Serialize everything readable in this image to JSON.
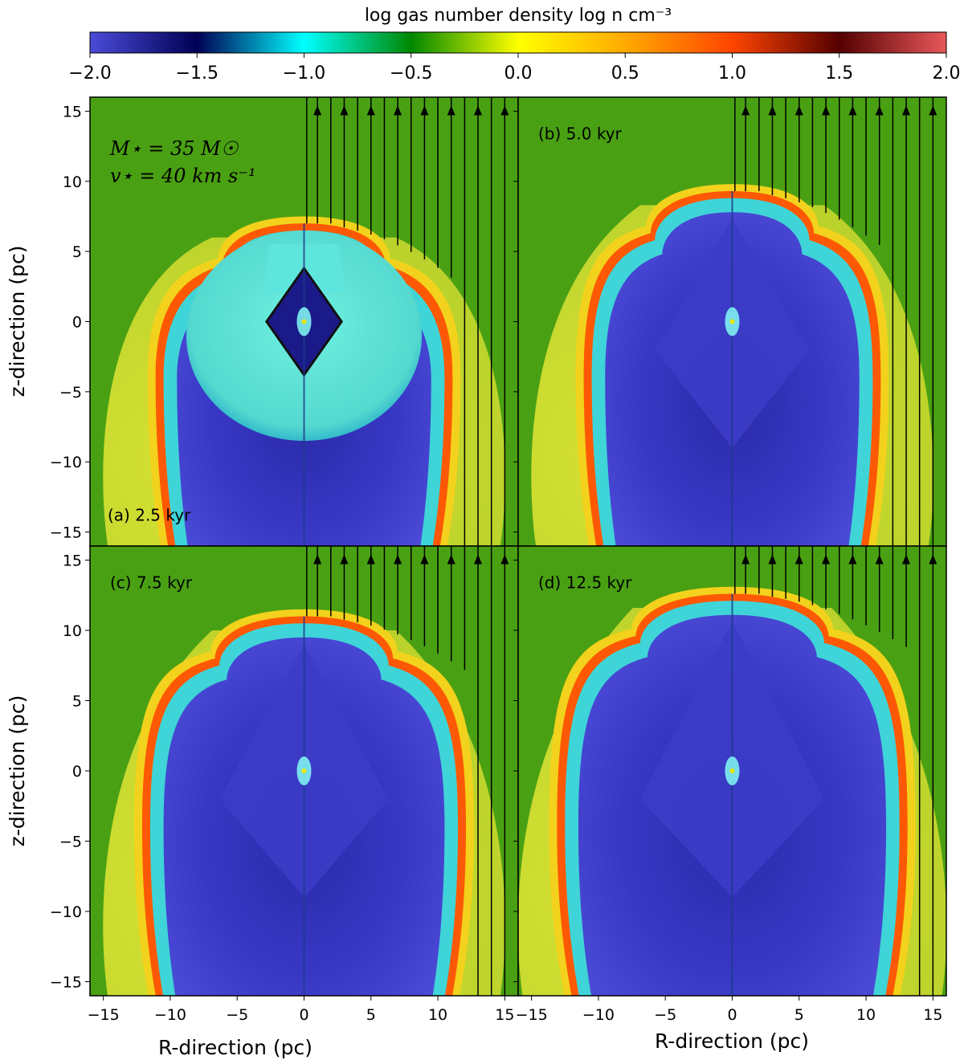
{
  "colorbar": {
    "label": "log gas number density log n cm⁻³",
    "ticks": [
      "−2.0",
      "−1.5",
      "−1.0",
      "−0.5",
      "0.0",
      "0.5",
      "1.0",
      "1.5",
      "2.0"
    ],
    "range": [
      -2.0,
      2.0
    ]
  },
  "chart_data": {
    "type": "heatmap",
    "xlabel": "R-direction (pc)",
    "ylabel": "z-direction (pc)",
    "xlim": [
      -16,
      16
    ],
    "ylim": [
      -16,
      16
    ],
    "xticks": [
      -15,
      -10,
      -5,
      0,
      5,
      10,
      15
    ],
    "yticks": [
      -15,
      -10,
      -5,
      0,
      5,
      10,
      15
    ],
    "colormap_stops": [
      {
        "v": -2.0,
        "c": "#4b4bd8"
      },
      {
        "v": -1.5,
        "c": "#000055"
      },
      {
        "v": -1.0,
        "c": "#00ffff"
      },
      {
        "v": -0.5,
        "c": "#008800"
      },
      {
        "v": 0.0,
        "c": "#ffff00"
      },
      {
        "v": 0.5,
        "c": "#ffaa00"
      },
      {
        "v": 1.0,
        "c": "#ff4400"
      },
      {
        "v": 1.5,
        "c": "#550000"
      },
      {
        "v": 2.0,
        "c": "#e8585a"
      }
    ],
    "ambient_log_n": -0.25,
    "star_note": {
      "mass": "M⋆ = 35 M☉",
      "velocity": "v⋆ = 40 km s⁻¹"
    },
    "panels": [
      {
        "id": "a",
        "label": "(a) 2.5 kyr",
        "time_kyr": 2.5,
        "label_position": "bottom-left",
        "bubble": {
          "z_top": 7.0,
          "z_bottom": -16,
          "r_max": 10.5,
          "shell_r_max": 12.5
        }
      },
      {
        "id": "b",
        "label": "(b) 5.0 kyr",
        "time_kyr": 5.0,
        "label_position": "top-left",
        "bubble": {
          "z_top": 9.3,
          "z_bottom": -16,
          "r_max": 10.5,
          "shell_r_max": 12.5
        }
      },
      {
        "id": "c",
        "label": "(c) 7.5 kyr",
        "time_kyr": 7.5,
        "label_position": "top-left",
        "bubble": {
          "z_top": 11.0,
          "z_bottom": -16,
          "r_max": 11.5,
          "shell_r_max": 12.5
        }
      },
      {
        "id": "d",
        "label": "(d) 12.5 kyr",
        "time_kyr": 12.5,
        "label_position": "top-left",
        "bubble": {
          "z_top": 12.6,
          "z_bottom": -16,
          "r_max": 12.5,
          "shell_r_max": 13.5
        }
      }
    ]
  }
}
